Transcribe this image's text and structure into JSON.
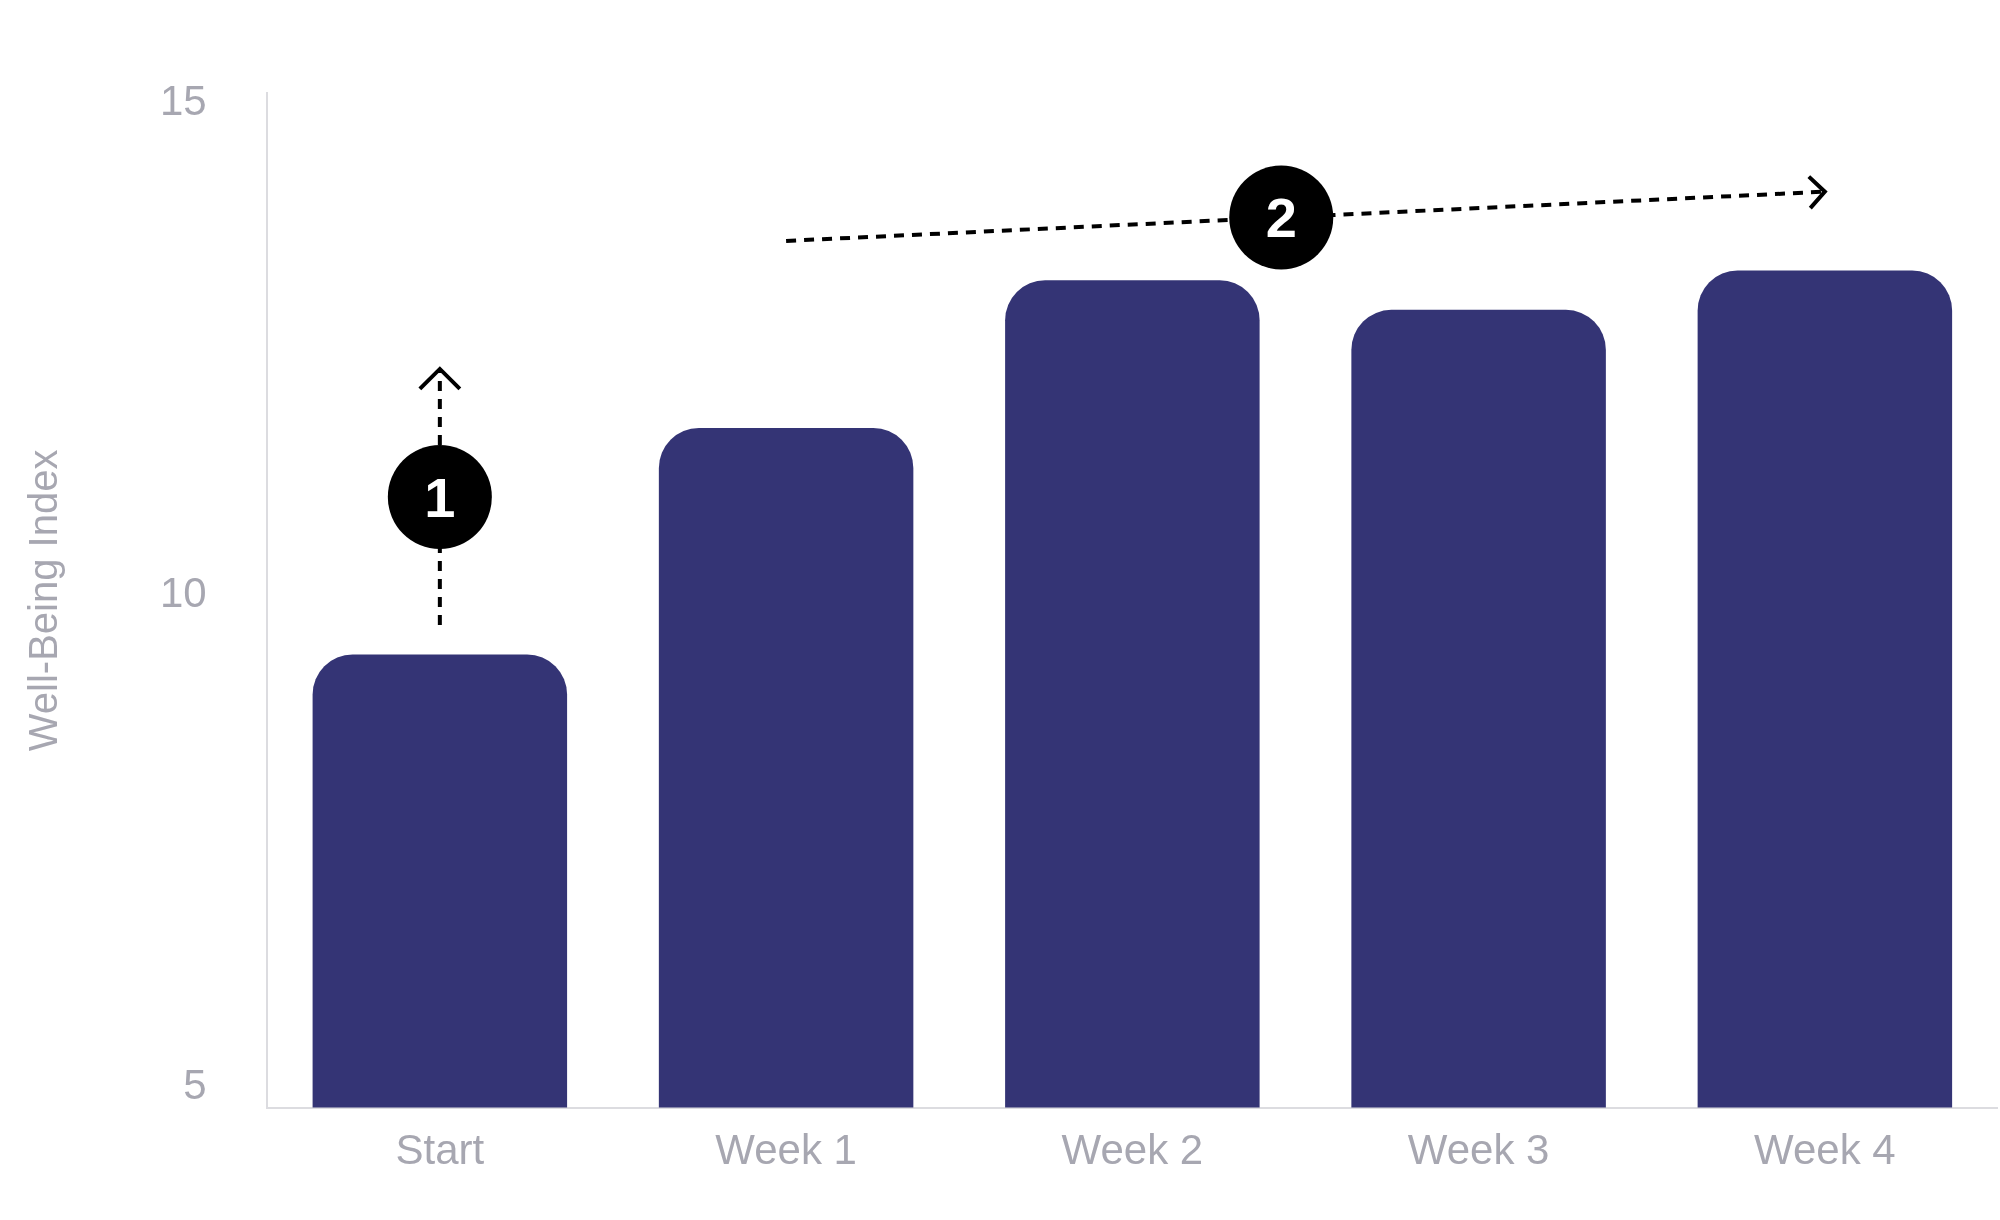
{
  "chart_data": {
    "type": "bar",
    "ylabel": "Well-Being Index",
    "categories": [
      "Start",
      "Week 1",
      "Week 2",
      "Week 3",
      "Week 4"
    ],
    "values": [
      9.4,
      11.7,
      13.2,
      12.9,
      13.3
    ],
    "color": "#343475",
    "ylim": [
      4.8,
      15.1
    ],
    "yticks": [
      5,
      10,
      15
    ],
    "grid": false,
    "legend": false,
    "annotations": [
      "1",
      "2"
    ]
  }
}
